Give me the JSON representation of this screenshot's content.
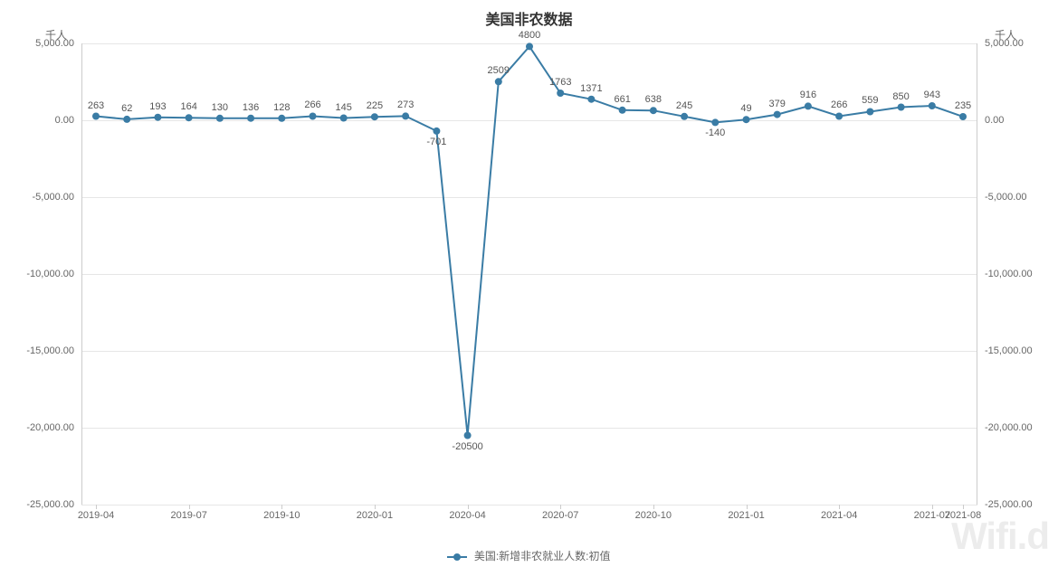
{
  "chart": {
    "type": "line",
    "title": "美国非农数据",
    "y_unit_left": "千人",
    "y_unit_right": "千人",
    "series_name": "美国:新增非农就业人数:初值",
    "series_color": "#3a7ca5",
    "marker_color": "#3a7ca5",
    "marker_radius": 4,
    "line_width": 2,
    "background_color": "#ffffff",
    "grid_color": "#e6e6e6",
    "axis_color": "#cccccc",
    "title_fontsize": 16,
    "label_fontsize": 11,
    "tick_fontsize": 11,
    "ylim": [
      -25000,
      5000
    ],
    "y_ticks": [
      {
        "v": 5000,
        "label": "5,000.00"
      },
      {
        "v": 0,
        "label": "0.00"
      },
      {
        "v": -5000,
        "label": "-5,000.00"
      },
      {
        "v": -10000,
        "label": "-10,000.00"
      },
      {
        "v": -15000,
        "label": "-15,000.00"
      },
      {
        "v": -20000,
        "label": "-20,000.00"
      },
      {
        "v": -25000,
        "label": "-25,000.00"
      }
    ],
    "x_ticks": [
      "2019-04",
      "2019-07",
      "2019-10",
      "2020-01",
      "2020-04",
      "2020-07",
      "2020-10",
      "2021-01",
      "2021-04",
      "2021-07",
      "2021-08"
    ],
    "x_tick_positions": [
      0,
      3,
      6,
      9,
      12,
      15,
      18,
      21,
      24,
      27,
      28
    ],
    "x_count": 29,
    "categories": [
      "2019-04",
      "2019-05",
      "2019-06",
      "2019-07",
      "2019-08",
      "2019-09",
      "2019-10",
      "2019-11",
      "2019-12",
      "2020-01",
      "2020-02",
      "2020-03",
      "2020-04",
      "2020-05",
      "2020-06",
      "2020-07",
      "2020-08",
      "2020-09",
      "2020-10",
      "2020-11",
      "2020-12",
      "2021-01",
      "2021-02",
      "2021-03",
      "2021-04",
      "2021-05",
      "2021-06",
      "2021-07",
      "2021-08"
    ],
    "values": [
      263,
      62,
      193,
      164,
      130,
      136,
      128,
      266,
      145,
      225,
      273,
      -701,
      -20500,
      2509,
      4800,
      1763,
      1371,
      661,
      638,
      245,
      -140,
      49,
      379,
      916,
      266,
      559,
      850,
      943,
      235
    ],
    "watermark": "Wifi.d"
  }
}
